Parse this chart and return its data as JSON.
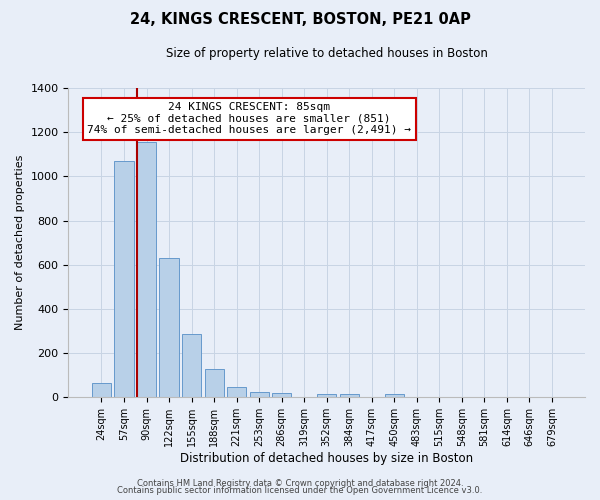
{
  "title": "24, KINGS CRESCENT, BOSTON, PE21 0AP",
  "subtitle": "Size of property relative to detached houses in Boston",
  "xlabel": "Distribution of detached houses by size in Boston",
  "ylabel": "Number of detached properties",
  "bar_labels": [
    "24sqm",
    "57sqm",
    "90sqm",
    "122sqm",
    "155sqm",
    "188sqm",
    "221sqm",
    "253sqm",
    "286sqm",
    "319sqm",
    "352sqm",
    "384sqm",
    "417sqm",
    "450sqm",
    "483sqm",
    "515sqm",
    "548sqm",
    "581sqm",
    "614sqm",
    "646sqm",
    "679sqm"
  ],
  "bar_values": [
    65,
    1070,
    1155,
    630,
    285,
    130,
    48,
    22,
    18,
    0,
    15,
    15,
    0,
    15,
    0,
    0,
    0,
    0,
    0,
    0,
    0
  ],
  "bar_color": "#b8d0e8",
  "bar_edgecolor": "#6699cc",
  "grid_color": "#c8d4e4",
  "background_color": "#e8eef8",
  "vline_color": "#aa0000",
  "vline_x_index": 2,
  "annotation_title": "24 KINGS CRESCENT: 85sqm",
  "annotation_line1": "← 25% of detached houses are smaller (851)",
  "annotation_line2": "74% of semi-detached houses are larger (2,491) →",
  "annotation_box_edgecolor": "#cc0000",
  "annotation_box_facecolor": "#ffffff",
  "ylim": [
    0,
    1400
  ],
  "yticks": [
    0,
    200,
    400,
    600,
    800,
    1000,
    1200,
    1400
  ],
  "footer1": "Contains HM Land Registry data © Crown copyright and database right 2024.",
  "footer2": "Contains public sector information licensed under the Open Government Licence v3.0."
}
